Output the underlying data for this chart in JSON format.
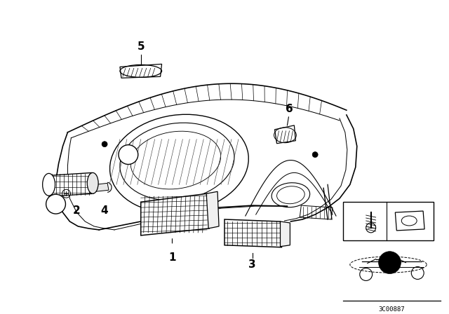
{
  "bg_color": "#ffffff",
  "fig_width": 6.4,
  "fig_height": 4.48,
  "dpi": 100,
  "catalog_num": "3C00887",
  "label_fontsize": 10,
  "small_fontsize": 8,
  "line_color": "#000000",
  "line_width": 0.9
}
